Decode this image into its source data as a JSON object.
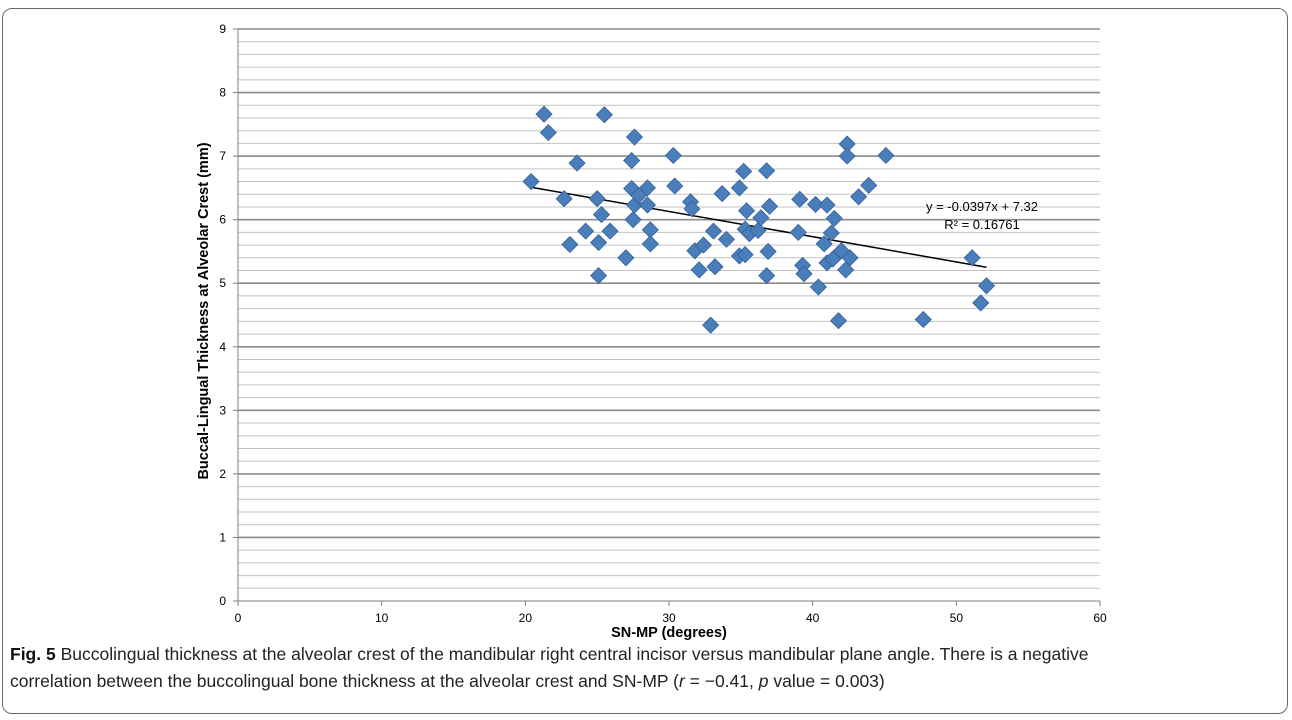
{
  "figure": {
    "label": "Fig. 5",
    "caption_line1": "Buccolingual thickness at the alveolar crest of the mandibular right central incisor versus mandibular plane angle. There is a negative",
    "caption_line2_pre": "correlation between the buccolingual bone thickness at the alveolar crest and SN-MP (",
    "r_symbol": "r",
    "r_value": " = −0.41, ",
    "p_symbol": "p",
    "p_value": " value = 0.003)"
  },
  "chart_data": {
    "type": "scatter",
    "title": "",
    "xlabel": "SN-MP (degrees)",
    "ylabel": "Buccal-Lingual Thickness at Alveolar Crest (mm)",
    "xlim": [
      0,
      60
    ],
    "ylim": [
      0,
      9
    ],
    "x_ticks": [
      0,
      10,
      20,
      30,
      40,
      50,
      60
    ],
    "y_ticks": [
      0,
      1,
      2,
      3,
      4,
      5,
      6,
      7,
      8,
      9
    ],
    "grid": "horizontal",
    "marker": "diamond",
    "marker_color": "#4a7ebb",
    "line_color": "#000000",
    "points": [
      [
        20.4,
        6.6
      ],
      [
        21.3,
        7.66
      ],
      [
        21.6,
        7.37
      ],
      [
        22.7,
        6.33
      ],
      [
        23.1,
        5.61
      ],
      [
        23.6,
        6.89
      ],
      [
        24.2,
        5.82
      ],
      [
        25.0,
        6.33
      ],
      [
        25.1,
        5.64
      ],
      [
        25.1,
        5.12
      ],
      [
        25.3,
        6.08
      ],
      [
        25.5,
        7.65
      ],
      [
        25.9,
        5.82
      ],
      [
        27.0,
        5.4
      ],
      [
        27.4,
        6.49
      ],
      [
        27.4,
        6.93
      ],
      [
        27.5,
        6.0
      ],
      [
        27.6,
        6.23
      ],
      [
        27.6,
        7.3
      ],
      [
        27.9,
        6.38
      ],
      [
        28.5,
        6.5
      ],
      [
        28.5,
        6.23
      ],
      [
        28.7,
        5.84
      ],
      [
        28.7,
        5.62
      ],
      [
        30.3,
        7.01
      ],
      [
        30.4,
        6.53
      ],
      [
        31.5,
        6.28
      ],
      [
        31.6,
        6.17
      ],
      [
        31.8,
        5.51
      ],
      [
        32.1,
        5.21
      ],
      [
        32.4,
        5.6
      ],
      [
        32.9,
        4.34
      ],
      [
        33.1,
        5.82
      ],
      [
        33.2,
        5.26
      ],
      [
        33.7,
        6.41
      ],
      [
        34.0,
        5.69
      ],
      [
        34.9,
        6.5
      ],
      [
        34.9,
        5.43
      ],
      [
        35.2,
        6.76
      ],
      [
        35.3,
        5.45
      ],
      [
        35.3,
        5.85
      ],
      [
        35.4,
        6.14
      ],
      [
        35.6,
        5.78
      ],
      [
        36.2,
        5.83
      ],
      [
        36.4,
        6.03
      ],
      [
        36.8,
        6.77
      ],
      [
        36.8,
        5.12
      ],
      [
        36.9,
        5.5
      ],
      [
        37.0,
        6.21
      ],
      [
        39.0,
        5.8
      ],
      [
        39.1,
        6.32
      ],
      [
        39.3,
        5.28
      ],
      [
        39.4,
        5.15
      ],
      [
        40.2,
        6.24
      ],
      [
        40.4,
        4.94
      ],
      [
        40.8,
        5.62
      ],
      [
        41.0,
        6.23
      ],
      [
        41.0,
        5.32
      ],
      [
        41.3,
        5.79
      ],
      [
        41.4,
        5.38
      ],
      [
        41.5,
        6.02
      ],
      [
        41.8,
        4.41
      ],
      [
        42.0,
        5.51
      ],
      [
        42.3,
        5.21
      ],
      [
        42.4,
        7.19
      ],
      [
        42.4,
        7.0
      ],
      [
        42.6,
        5.4
      ],
      [
        43.2,
        6.36
      ],
      [
        43.9,
        6.54
      ],
      [
        45.1,
        7.01
      ],
      [
        47.7,
        4.43
      ],
      [
        51.1,
        5.4
      ],
      [
        51.7,
        4.69
      ],
      [
        52.1,
        4.96
      ]
    ],
    "trendline": {
      "slope": -0.0397,
      "intercept": 7.32,
      "x_start": 20.4,
      "x_end": 52.1,
      "equation_label": "y = -0.0397x + 7.32",
      "r2_label": "R² = 0.16761"
    }
  }
}
